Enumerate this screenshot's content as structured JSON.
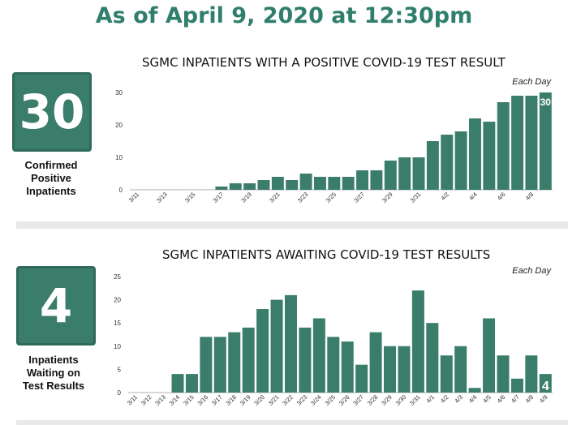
{
  "headline": "As of April 9, 2020 at 12:30pm",
  "panel1": {
    "count": "30",
    "caption_lines": [
      "Confirmed",
      "Positive",
      "Inpatients"
    ]
  },
  "panel2": {
    "count": "4",
    "caption_lines": [
      "Inpatients",
      "Waiting on",
      "Test Results"
    ]
  },
  "colors": {
    "bar": "#3b7d6b",
    "headline": "#2f7f6c"
  },
  "chart_data": [
    {
      "type": "bar",
      "title": "SGMC INPATIENTS WITH A POSITIVE COVID-19 TEST RESULT",
      "annotation": "Each Day",
      "categories": [
        "3/11",
        "3/12",
        "3/13",
        "3/14",
        "3/15",
        "3/16",
        "3/17",
        "3/18",
        "3/19",
        "3/20",
        "3/21",
        "3/22",
        "3/23",
        "3/24",
        "3/25",
        "3/26",
        "3/27",
        "3/28",
        "3/29",
        "3/30",
        "3/31",
        "4/1",
        "4/2",
        "4/3",
        "4/4",
        "4/5",
        "4/6",
        "4/7",
        "4/8",
        "4/9"
      ],
      "tick_labels": [
        "3/11",
        "",
        "3/13",
        "",
        "3/15",
        "",
        "3/17",
        "",
        "3/19",
        "",
        "3/21",
        "",
        "3/23",
        "",
        "3/25",
        "",
        "3/27",
        "",
        "3/29",
        "",
        "3/31",
        "",
        "4/2",
        "",
        "4/4",
        "",
        "4/6",
        "",
        "4/8",
        ""
      ],
      "values": [
        0,
        0,
        0,
        0,
        0,
        0,
        1,
        2,
        2,
        3,
        4,
        3,
        5,
        4,
        4,
        4,
        6,
        6,
        9,
        10,
        10,
        15,
        17,
        18,
        22,
        21,
        27,
        29,
        29,
        30
      ],
      "last_value_label": "30",
      "ylim": [
        0,
        30
      ],
      "yticks": [
        0,
        10,
        20,
        30
      ],
      "grid": false
    },
    {
      "type": "bar",
      "title": "SGMC INPATIENTS AWAITING COVID-19 TEST RESULTS",
      "annotation": "Each Day",
      "categories": [
        "3/11",
        "3/12",
        "3/13",
        "3/14",
        "3/15",
        "3/16",
        "3/17",
        "3/18",
        "3/19",
        "3/20",
        "3/21",
        "3/22",
        "3/23",
        "3/24",
        "3/25",
        "3/26",
        "3/27",
        "3/28",
        "3/29",
        "3/30",
        "3/31",
        "4/1",
        "4/2",
        "4/3",
        "4/4",
        "4/5",
        "4/6",
        "4/7",
        "4/8",
        "4/9"
      ],
      "tick_labels": [
        "3/11",
        "3/12",
        "3/13",
        "3/14",
        "3/15",
        "3/16",
        "3/17",
        "3/18",
        "3/19",
        "3/20",
        "3/21",
        "3/22",
        "3/23",
        "3/24",
        "3/25",
        "3/26",
        "3/27",
        "3/28",
        "3/29",
        "3/30",
        "3/31",
        "4/1",
        "4/2",
        "4/3",
        "4/4",
        "4/5",
        "4/6",
        "4/7",
        "4/8",
        "4/9"
      ],
      "values": [
        0,
        0,
        0,
        4,
        4,
        12,
        12,
        13,
        14,
        18,
        20,
        21,
        14,
        16,
        12,
        11,
        6,
        13,
        10,
        10,
        22,
        15,
        8,
        10,
        1,
        16,
        8,
        3,
        8,
        4
      ],
      "last_value_label": "4",
      "ylim": [
        0,
        25
      ],
      "yticks": [
        0,
        5,
        10,
        15,
        20,
        25
      ],
      "grid": false
    }
  ]
}
